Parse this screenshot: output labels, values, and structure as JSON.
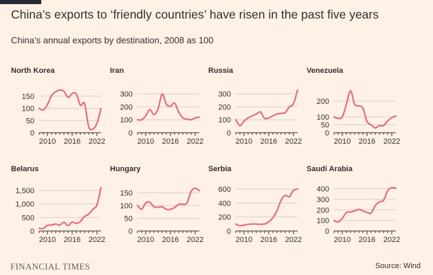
{
  "header": {
    "title": "China’s exports to ‘friendly countries’ have risen in the past five years",
    "subtitle": "China’s annual exports by destination, 2008 as 100"
  },
  "footer": {
    "brand": "FINANCIAL TIMES",
    "source": "Source: Wind"
  },
  "colors": {
    "background": "#fff1e5",
    "line": "#e26b88",
    "grid": "#d8cfc6",
    "text": "#33302e"
  },
  "chart_data": [
    {
      "type": "line",
      "title": "North Korea",
      "xlim": [
        2008,
        2023
      ],
      "ylim": [
        0,
        175
      ],
      "xticks": [
        2010,
        2016,
        2022
      ],
      "xtick_labels": [
        "2010",
        "2016",
        "2022"
      ],
      "yticks": [
        0,
        50,
        100,
        150
      ],
      "ytick_labels": [
        "0",
        "50",
        "100",
        "150"
      ],
      "series": [
        {
          "x": [
            2008,
            2009,
            2010,
            2011,
            2012,
            2013,
            2014,
            2015,
            2016,
            2017,
            2018,
            2019,
            2020,
            2021,
            2022,
            2023
          ],
          "values": [
            100,
            93,
            115,
            152,
            168,
            175,
            170,
            145,
            160,
            160,
            112,
            120,
            25,
            15,
            38,
            99
          ]
        }
      ]
    },
    {
      "type": "line",
      "title": "Iran",
      "xlim": [
        2008,
        2023
      ],
      "ylim": [
        0,
        330
      ],
      "xticks": [
        2010,
        2016,
        2022
      ],
      "xtick_labels": [
        "2010",
        "2016",
        "2022"
      ],
      "yticks": [
        0,
        100,
        200,
        300
      ],
      "ytick_labels": [
        "0",
        "100",
        "200",
        "300"
      ],
      "series": [
        {
          "x": [
            2008,
            2009,
            2010,
            2011,
            2012,
            2013,
            2014,
            2015,
            2016,
            2017,
            2018,
            2019,
            2020,
            2021,
            2022,
            2023
          ],
          "values": [
            100,
            100,
            130,
            180,
            140,
            185,
            300,
            220,
            205,
            230,
            160,
            115,
            105,
            100,
            115,
            120
          ]
        }
      ]
    },
    {
      "type": "line",
      "title": "Russia",
      "xlim": [
        2008,
        2023
      ],
      "ylim": [
        0,
        330
      ],
      "xticks": [
        2010,
        2016,
        2022
      ],
      "xtick_labels": [
        "2010",
        "2016",
        "2022"
      ],
      "yticks": [
        0,
        100,
        200,
        300
      ],
      "ytick_labels": [
        "0",
        "100",
        "200",
        "300"
      ],
      "series": [
        {
          "x": [
            2008,
            2009,
            2010,
            2011,
            2012,
            2013,
            2014,
            2015,
            2016,
            2017,
            2018,
            2019,
            2020,
            2021,
            2022,
            2023
          ],
          "values": [
            100,
            55,
            90,
            115,
            130,
            145,
            160,
            110,
            115,
            130,
            145,
            150,
            155,
            200,
            225,
            330
          ]
        }
      ]
    },
    {
      "type": "line",
      "title": "Venezuela",
      "xlim": [
        2008,
        2023
      ],
      "ylim": [
        0,
        270
      ],
      "xticks": [
        2010,
        2016,
        2022
      ],
      "xtick_labels": [
        "2010",
        "2016",
        "2022"
      ],
      "yticks": [
        0,
        50,
        100,
        200
      ],
      "ytick_labels": [
        "0",
        "50",
        "100",
        "200"
      ],
      "series": [
        {
          "x": [
            2008,
            2009,
            2010,
            2011,
            2012,
            2013,
            2014,
            2015,
            2016,
            2017,
            2018,
            2019,
            2020,
            2021,
            2022,
            2023
          ],
          "values": [
            100,
            90,
            100,
            180,
            265,
            180,
            170,
            155,
            70,
            50,
            30,
            45,
            45,
            75,
            95,
            105
          ]
        }
      ]
    },
    {
      "type": "line",
      "title": "Belarus",
      "xlim": [
        2008,
        2023
      ],
      "ylim": [
        0,
        1600
      ],
      "xticks": [
        2010,
        2016,
        2022
      ],
      "xtick_labels": [
        "2010",
        "2016",
        "2022"
      ],
      "yticks": [
        0,
        500,
        1000,
        1500
      ],
      "ytick_labels": [
        "0",
        "500",
        "1,000",
        "1,500"
      ],
      "series": [
        {
          "x": [
            2008,
            2009,
            2010,
            2011,
            2012,
            2013,
            2014,
            2015,
            2016,
            2017,
            2018,
            2019,
            2020,
            2021,
            2022,
            2023
          ],
          "values": [
            100,
            100,
            210,
            220,
            260,
            220,
            320,
            200,
            330,
            280,
            350,
            540,
            620,
            800,
            960,
            1600
          ]
        }
      ]
    },
    {
      "type": "line",
      "title": "Hungary",
      "xlim": [
        2008,
        2023
      ],
      "ylim": [
        0,
        170
      ],
      "xticks": [
        2010,
        2016,
        2022
      ],
      "xtick_labels": [
        "2010",
        "2016",
        "2022"
      ],
      "yticks": [
        0,
        50,
        100,
        150
      ],
      "ytick_labels": [
        "0",
        "50",
        "100",
        "150"
      ],
      "series": [
        {
          "x": [
            2008,
            2009,
            2010,
            2011,
            2012,
            2013,
            2014,
            2015,
            2016,
            2017,
            2018,
            2019,
            2020,
            2021,
            2022,
            2023
          ],
          "values": [
            100,
            85,
            110,
            113,
            95,
            93,
            95,
            85,
            85,
            92,
            105,
            105,
            110,
            155,
            168,
            158
          ]
        }
      ]
    },
    {
      "type": "line",
      "title": "Serbia",
      "xlim": [
        2008,
        2023
      ],
      "ylim": [
        0,
        620
      ],
      "xticks": [
        2010,
        2016,
        2022
      ],
      "xtick_labels": [
        "2010",
        "2016",
        "2022"
      ],
      "yticks": [
        0,
        200,
        400,
        600
      ],
      "ytick_labels": [
        "0",
        "200",
        "400",
        "600"
      ],
      "series": [
        {
          "x": [
            2008,
            2009,
            2010,
            2011,
            2012,
            2013,
            2014,
            2015,
            2016,
            2017,
            2018,
            2019,
            2020,
            2021,
            2022,
            2023
          ],
          "values": [
            100,
            75,
            85,
            95,
            100,
            100,
            95,
            100,
            130,
            190,
            290,
            440,
            510,
            490,
            580,
            600
          ]
        }
      ]
    },
    {
      "type": "line",
      "title": "Saudi Arabia",
      "xlim": [
        2008,
        2023
      ],
      "ylim": [
        0,
        410
      ],
      "xticks": [
        2010,
        2016,
        2022
      ],
      "xtick_labels": [
        "2010",
        "2016",
        "2022"
      ],
      "yticks": [
        0,
        100,
        200,
        300,
        400
      ],
      "ytick_labels": [
        "0",
        "100",
        "200",
        "300",
        "400"
      ],
      "series": [
        {
          "x": [
            2008,
            2009,
            2010,
            2011,
            2012,
            2013,
            2014,
            2015,
            2016,
            2017,
            2018,
            2019,
            2020,
            2021,
            2022,
            2023
          ],
          "values": [
            100,
            85,
            120,
            175,
            180,
            190,
            205,
            190,
            175,
            170,
            240,
            275,
            290,
            380,
            410,
            405
          ]
        }
      ]
    }
  ]
}
